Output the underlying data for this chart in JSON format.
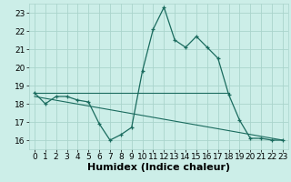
{
  "bg_color": "#cceee8",
  "line_color": "#1a6b5e",
  "grid_color": "#aad4cc",
  "xlabel": "Humidex (Indice chaleur)",
  "xlabel_fontsize": 8,
  "tick_fontsize": 6.5,
  "xlim": [
    -0.5,
    23.5
  ],
  "ylim": [
    15.5,
    23.5
  ],
  "yticks": [
    16,
    17,
    18,
    19,
    20,
    21,
    22,
    23
  ],
  "xticks": [
    0,
    1,
    2,
    3,
    4,
    5,
    6,
    7,
    8,
    9,
    10,
    11,
    12,
    13,
    14,
    15,
    16,
    17,
    18,
    19,
    20,
    21,
    22,
    23
  ],
  "main_series_x": [
    0,
    1,
    2,
    3,
    4,
    5,
    6,
    7,
    8,
    9,
    10,
    11,
    12,
    13,
    14,
    15,
    16,
    17,
    18,
    19,
    20,
    21,
    22,
    23
  ],
  "main_series_y": [
    18.6,
    18.0,
    18.4,
    18.4,
    18.2,
    18.1,
    16.9,
    16.0,
    16.3,
    16.7,
    19.8,
    22.1,
    23.3,
    21.5,
    21.1,
    21.7,
    21.1,
    20.5,
    18.5,
    17.1,
    16.1,
    16.1,
    16.0,
    16.0
  ],
  "line2_x": [
    0,
    18
  ],
  "line2_y": [
    18.6,
    18.6
  ],
  "line3_x": [
    0,
    23
  ],
  "line3_y": [
    18.4,
    16.0
  ]
}
